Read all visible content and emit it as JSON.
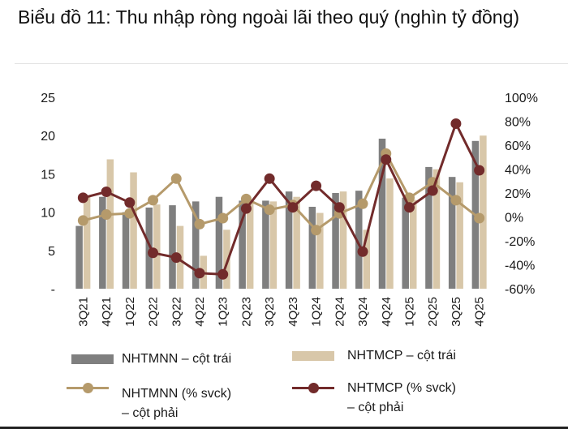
{
  "title": "Biểu đồ 11: Thu nhập ròng ngoài lãi theo quý (nghìn tỷ đồng)",
  "colors": {
    "nhtmnn_bar": "#7f7f7f",
    "nhtmcp_bar": "#d8c7a9",
    "nhtmnn_line": "#b59a6b",
    "nhtmcp_line": "#722b2b"
  },
  "legend": {
    "bar1": "NHTMNN – cột trái",
    "bar2": "NHTMCP – cột trái",
    "line1_a": "NHTMNN (% svck)",
    "line1_b": "– cột phải",
    "line2_a": "NHTMCP (% svck)",
    "line2_b": "– cột phải"
  },
  "chart_data": {
    "type": "bar",
    "categories": [
      "3Q21",
      "4Q21",
      "1Q22",
      "2Q22",
      "3Q22",
      "4Q22",
      "1Q23",
      "2Q23",
      "3Q23",
      "4Q23",
      "1Q24",
      "2Q24",
      "3Q24",
      "4Q24",
      "1Q25",
      "2Q25",
      "3Q25",
      "4Q25"
    ],
    "left_axis": {
      "ticks": [
        "-",
        "5",
        "10",
        "15",
        "20",
        "25"
      ],
      "ylim": [
        0,
        25
      ]
    },
    "right_axis": {
      "ticks": [
        "-60%",
        "-40%",
        "-20%",
        "0%",
        "20%",
        "40%",
        "60%",
        "80%",
        "100%"
      ],
      "ylim": [
        -60,
        100
      ]
    },
    "series": [
      {
        "name": "NHTMNN – cột trái",
        "axis": "left",
        "kind": "bar",
        "values": [
          8.2,
          12.0,
          10.0,
          10.6,
          10.9,
          11.4,
          12.0,
          11.5,
          11.5,
          12.7,
          10.7,
          12.5,
          12.8,
          19.6,
          11.9,
          15.9,
          14.6,
          19.3
        ]
      },
      {
        "name": "NHTMCP – cột trái",
        "axis": "left",
        "kind": "bar",
        "values": [
          12.0,
          16.9,
          15.2,
          11.0,
          8.2,
          4.3,
          7.7,
          11.5,
          11.4,
          12.0,
          9.9,
          12.7,
          7.7,
          14.4,
          11.6,
          15.6,
          13.9,
          20.0
        ]
      },
      {
        "name": "NHTMNN (% svck)",
        "axis": "right",
        "kind": "line",
        "values": [
          -3,
          2,
          3,
          14,
          32,
          -6,
          -1,
          15,
          6,
          10,
          -11,
          3,
          11,
          53,
          16,
          29,
          14,
          -1
        ]
      },
      {
        "name": "NHTMCP (% svck)",
        "axis": "right",
        "kind": "line",
        "values": [
          16,
          21,
          12,
          -30,
          -34,
          -47,
          -48,
          7,
          32,
          8,
          26,
          8,
          -29,
          48,
          8,
          22,
          78,
          39
        ]
      }
    ]
  }
}
